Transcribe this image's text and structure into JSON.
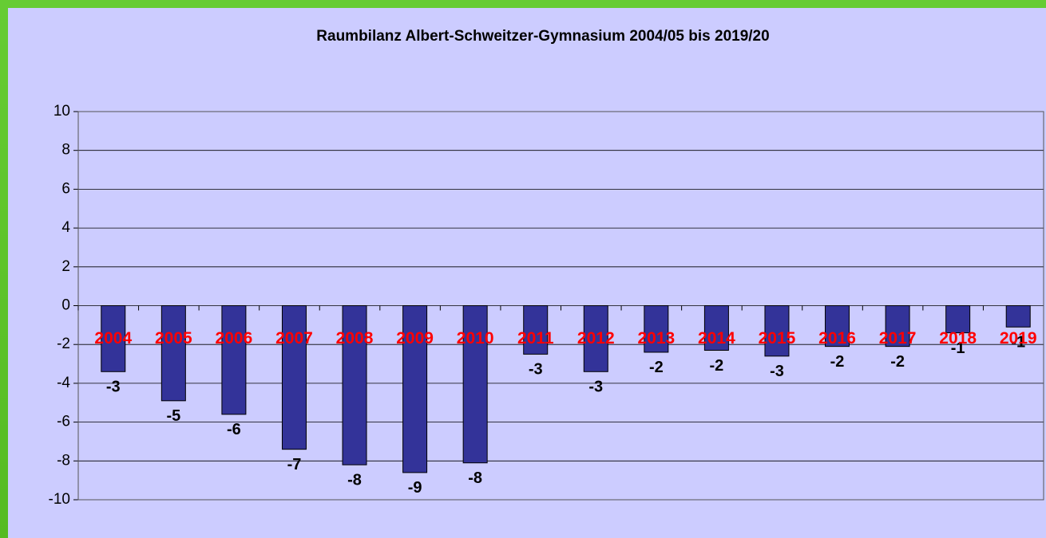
{
  "chart_data": {
    "type": "bar",
    "title": "Raumbilanz Albert-Schweitzer-Gymnasium 2004/05 bis 2019/20",
    "categories": [
      "2004",
      "2005",
      "2006",
      "2007",
      "2008",
      "2009",
      "2010",
      "2011",
      "2012",
      "2013",
      "2014",
      "2015",
      "2016",
      "2017",
      "2018",
      "2019"
    ],
    "values": [
      -3.4,
      -4.9,
      -5.6,
      -7.4,
      -8.2,
      -8.6,
      -8.1,
      -2.5,
      -3.4,
      -2.4,
      -2.3,
      -2.6,
      -2.1,
      -2.1,
      -1.4,
      -1.1
    ],
    "value_labels": [
      "-3",
      "-5",
      "-6",
      "-7",
      "-8",
      "-9",
      "-8",
      "-3",
      "-3",
      "-2",
      "-2",
      "-3",
      "-2",
      "-2",
      "-1",
      "-1"
    ],
    "color": "#333399",
    "ylim": [
      -10,
      10
    ],
    "yticks": [
      -10,
      -8,
      -6,
      -4,
      -2,
      0,
      2,
      4,
      6,
      8,
      10
    ],
    "grid": true
  }
}
